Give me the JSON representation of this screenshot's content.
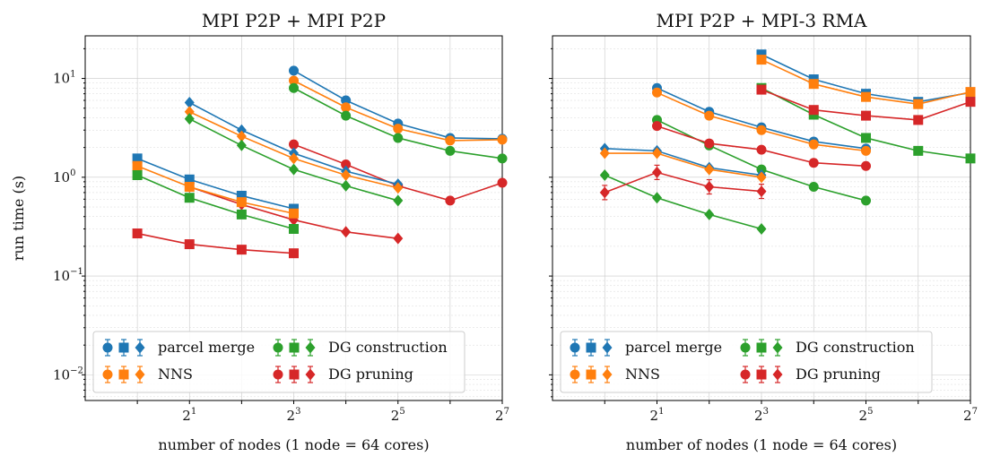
{
  "figure": {
    "ylabel": "run time (s)",
    "xlabel": "number of nodes (1 node = 64 cores)"
  },
  "legend": {
    "entries": [
      "parcel merge",
      "NNS",
      "DG construction",
      "DG pruning"
    ]
  },
  "colors": {
    "parcel merge": "#1f77b4",
    "NNS": "#ff7f0e",
    "DG construction": "#2ca02c",
    "DG pruning": "#d62728"
  },
  "chart_data": [
    {
      "type": "line",
      "title": "MPI P2P + MPI P2P",
      "xlabel": "number of nodes (1 node = 64 cores)",
      "ylabel": "run time (s)",
      "xscale": "log2",
      "yscale": "log10",
      "xlim": [
        0.5,
        128
      ],
      "ylim": [
        0.0055,
        27
      ],
      "xticks": [
        {
          "base": "2",
          "exp": "1",
          "value": 2
        },
        {
          "base": "2",
          "exp": "3",
          "value": 8
        },
        {
          "base": "2",
          "exp": "5",
          "value": 32
        },
        {
          "base": "2",
          "exp": "7",
          "value": 128
        }
      ],
      "yticks": [
        {
          "base": "10",
          "exp": "1",
          "value": 10
        },
        {
          "base": "10",
          "exp": "0",
          "value": 1
        },
        {
          "base": "10",
          "exp": "−1",
          "value": 0.1
        },
        {
          "base": "10",
          "exp": "−2",
          "value": 0.01
        }
      ],
      "legend_position": "lower-left",
      "series": [
        {
          "name": "parcel merge",
          "group": "circle",
          "x": [
            8,
            16,
            32,
            64,
            128
          ],
          "y": [
            12.0,
            6.0,
            3.5,
            2.5,
            2.45
          ]
        },
        {
          "name": "NNS",
          "group": "circle",
          "x": [
            8,
            16,
            32,
            64,
            128
          ],
          "y": [
            9.5,
            5.1,
            3.1,
            2.35,
            2.4
          ]
        },
        {
          "name": "DG construction",
          "group": "circle",
          "x": [
            8,
            16,
            32,
            64,
            128
          ],
          "y": [
            8.0,
            4.2,
            2.5,
            1.85,
            1.55
          ]
        },
        {
          "name": "DG pruning",
          "group": "circle",
          "x": [
            8,
            16,
            32,
            64,
            128
          ],
          "y": [
            2.15,
            1.35,
            0.82,
            0.58,
            0.88
          ]
        },
        {
          "name": "parcel merge",
          "group": "diamond",
          "x": [
            2,
            4,
            8,
            16,
            32
          ],
          "y": [
            5.7,
            3.0,
            1.75,
            1.15,
            0.85
          ]
        },
        {
          "name": "NNS",
          "group": "diamond",
          "x": [
            2,
            4,
            8,
            16,
            32
          ],
          "y": [
            4.6,
            2.6,
            1.55,
            1.05,
            0.78
          ]
        },
        {
          "name": "DG construction",
          "group": "diamond",
          "x": [
            2,
            4,
            8,
            16,
            32
          ],
          "y": [
            3.9,
            2.1,
            1.2,
            0.82,
            0.58
          ]
        },
        {
          "name": "DG pruning",
          "group": "diamond",
          "x": [
            2,
            4,
            8,
            16,
            32
          ],
          "y": [
            0.8,
            0.53,
            0.37,
            0.28,
            0.24
          ]
        },
        {
          "name": "parcel merge",
          "group": "square",
          "x": [
            1,
            2,
            4,
            8
          ],
          "y": [
            1.55,
            0.95,
            0.65,
            0.48
          ]
        },
        {
          "name": "NNS",
          "group": "square",
          "x": [
            1,
            2,
            4,
            8
          ],
          "y": [
            1.3,
            0.8,
            0.56,
            0.43
          ]
        },
        {
          "name": "DG construction",
          "group": "square",
          "x": [
            1,
            2,
            4,
            8
          ],
          "y": [
            1.05,
            0.62,
            0.42,
            0.3
          ]
        },
        {
          "name": "DG pruning",
          "group": "square",
          "x": [
            1,
            2,
            4,
            8
          ],
          "y": [
            0.27,
            0.21,
            0.185,
            0.17
          ]
        }
      ]
    },
    {
      "type": "line",
      "title": "MPI P2P + MPI-3 RMA",
      "xlabel": "number of nodes (1 node = 64 cores)",
      "ylabel": "",
      "xscale": "log2",
      "yscale": "log10",
      "xlim": [
        0.5,
        128
      ],
      "ylim": [
        0.0055,
        27
      ],
      "xticks": [
        {
          "base": "2",
          "exp": "1",
          "value": 2
        },
        {
          "base": "2",
          "exp": "3",
          "value": 8
        },
        {
          "base": "2",
          "exp": "5",
          "value": 32
        },
        {
          "base": "2",
          "exp": "7",
          "value": 128
        }
      ],
      "legend_position": "lower-left",
      "series": [
        {
          "name": "parcel merge",
          "group": "square",
          "x": [
            8,
            16,
            32,
            64,
            128
          ],
          "y": [
            17.5,
            9.8,
            7.0,
            5.8,
            7.2
          ]
        },
        {
          "name": "NNS",
          "group": "square",
          "x": [
            8,
            16,
            32,
            64,
            128
          ],
          "y": [
            15.5,
            8.8,
            6.5,
            5.5,
            7.3
          ]
        },
        {
          "name": "DG construction",
          "group": "square",
          "x": [
            8,
            16,
            32,
            64,
            128
          ],
          "y": [
            8.0,
            4.3,
            2.5,
            1.85,
            1.55
          ]
        },
        {
          "name": "DG pruning",
          "group": "square",
          "x": [
            8,
            16,
            32,
            64,
            128
          ],
          "y": [
            7.7,
            4.8,
            4.2,
            3.8,
            5.8
          ]
        },
        {
          "name": "parcel merge",
          "group": "circle",
          "x": [
            2,
            4,
            8,
            16,
            32
          ],
          "y": [
            8.0,
            4.6,
            3.2,
            2.3,
            1.95
          ]
        },
        {
          "name": "NNS",
          "group": "circle",
          "x": [
            2,
            4,
            8,
            16,
            32
          ],
          "y": [
            7.2,
            4.2,
            3.0,
            2.15,
            1.85
          ]
        },
        {
          "name": "DG construction",
          "group": "circle",
          "x": [
            2,
            4,
            8,
            16,
            32
          ],
          "y": [
            3.8,
            2.1,
            1.2,
            0.8,
            0.58
          ]
        },
        {
          "name": "DG pruning",
          "group": "circle",
          "x": [
            2,
            4,
            8,
            16,
            32
          ],
          "y": [
            3.3,
            2.2,
            1.9,
            1.4,
            1.3
          ]
        },
        {
          "name": "parcel merge",
          "group": "diamond",
          "x": [
            1,
            2,
            4,
            8
          ],
          "y": [
            1.95,
            1.85,
            1.25,
            1.05
          ]
        },
        {
          "name": "NNS",
          "group": "diamond",
          "x": [
            1,
            2,
            4,
            8
          ],
          "y": [
            1.75,
            1.75,
            1.2,
            1.0
          ]
        },
        {
          "name": "DG construction",
          "group": "diamond",
          "x": [
            1,
            2,
            4,
            8
          ],
          "y": [
            1.05,
            0.62,
            0.42,
            0.3
          ]
        },
        {
          "name": "DG pruning",
          "group": "diamond",
          "x": [
            1,
            2,
            4,
            8
          ],
          "y": [
            0.7,
            1.12,
            0.8,
            0.72
          ]
        }
      ]
    }
  ]
}
